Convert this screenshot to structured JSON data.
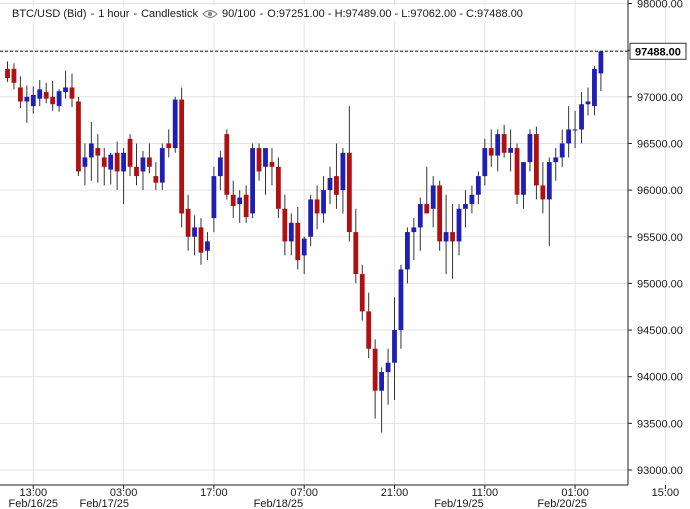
{
  "header": {
    "symbol": "BTC/USD (Bid)",
    "interval": "1 hour",
    "chart_kind": "Candlestick",
    "progress": "90/100",
    "ohlc": "O:97251.00 - H:97489.00 - L:97062.00 - C:97488.00"
  },
  "colors": {
    "bull": "#1f1fb4",
    "bear": "#b01010",
    "grid": "#e3e3e3",
    "axis": "#222222",
    "text": "#1a1a1a",
    "last_price_line": "#222222"
  },
  "chart_data": {
    "type": "candlestick",
    "ylim": [
      92900,
      98000
    ],
    "y_ticks": [
      93000,
      93500,
      94000,
      94500,
      95000,
      95500,
      96000,
      96500,
      97000,
      97500,
      98000
    ],
    "y_tick_labels": [
      "93000.00",
      "93500.00",
      "94000.00",
      "94500.00",
      "95000.00",
      "95500.00",
      "96000.00",
      "96500.00",
      "97000.00",
      "97500.00",
      "98000.00"
    ],
    "time_ticks": [
      {
        "index": 4,
        "label": "13:00"
      },
      {
        "index": 18,
        "label": "03:00"
      },
      {
        "index": 32,
        "label": "17:00"
      },
      {
        "index": 46,
        "label": "07:00"
      },
      {
        "index": 60,
        "label": "21:00"
      },
      {
        "index": 74,
        "label": "11:00"
      },
      {
        "index": 88,
        "label": "01:00"
      },
      {
        "index": 102,
        "label": "15:00"
      }
    ],
    "date_labels": [
      {
        "index": 4,
        "label": "Feb/16/25"
      },
      {
        "index": 15,
        "label": "Feb/17/25"
      },
      {
        "index": 42,
        "label": "Feb/18/25"
      },
      {
        "index": 70,
        "label": "Feb/19/25"
      },
      {
        "index": 86,
        "label": "Feb/20/25"
      }
    ],
    "last_price": 97488,
    "last_price_label": "97488.00",
    "candles": [
      {
        "o": 97300,
        "h": 97380,
        "l": 97160,
        "c": 97200
      },
      {
        "o": 97300,
        "h": 97360,
        "l": 97080,
        "c": 97150
      },
      {
        "o": 97100,
        "h": 97220,
        "l": 96880,
        "c": 96950
      },
      {
        "o": 96950,
        "h": 97120,
        "l": 96720,
        "c": 97000
      },
      {
        "o": 96900,
        "h": 97110,
        "l": 96820,
        "c": 97020
      },
      {
        "o": 96980,
        "h": 97180,
        "l": 96900,
        "c": 97080
      },
      {
        "o": 97050,
        "h": 97150,
        "l": 96930,
        "c": 96980
      },
      {
        "o": 97000,
        "h": 97170,
        "l": 96850,
        "c": 96920
      },
      {
        "o": 96900,
        "h": 97080,
        "l": 96840,
        "c": 97060
      },
      {
        "o": 97050,
        "h": 97280,
        "l": 96980,
        "c": 97100
      },
      {
        "o": 97100,
        "h": 97250,
        "l": 96890,
        "c": 96980
      },
      {
        "o": 96950,
        "h": 97000,
        "l": 96150,
        "c": 96200
      },
      {
        "o": 96250,
        "h": 96500,
        "l": 96050,
        "c": 96350
      },
      {
        "o": 96350,
        "h": 96730,
        "l": 96100,
        "c": 96500
      },
      {
        "o": 96450,
        "h": 96600,
        "l": 96080,
        "c": 96370
      },
      {
        "o": 96350,
        "h": 96450,
        "l": 96050,
        "c": 96250
      },
      {
        "o": 96220,
        "h": 96400,
        "l": 96060,
        "c": 96380
      },
      {
        "o": 96400,
        "h": 96520,
        "l": 96000,
        "c": 96200
      },
      {
        "o": 96200,
        "h": 96450,
        "l": 95850,
        "c": 96400
      },
      {
        "o": 96550,
        "h": 96600,
        "l": 96150,
        "c": 96250
      },
      {
        "o": 96250,
        "h": 96500,
        "l": 96050,
        "c": 96150
      },
      {
        "o": 96200,
        "h": 96420,
        "l": 96000,
        "c": 96350
      },
      {
        "o": 96350,
        "h": 96500,
        "l": 96180,
        "c": 96250
      },
      {
        "o": 96150,
        "h": 96300,
        "l": 96000,
        "c": 96080
      },
      {
        "o": 96080,
        "h": 96500,
        "l": 96000,
        "c": 96450
      },
      {
        "o": 96500,
        "h": 96650,
        "l": 96350,
        "c": 96450
      },
      {
        "o": 96450,
        "h": 97000,
        "l": 96400,
        "c": 96970
      },
      {
        "o": 96970,
        "h": 97100,
        "l": 95600,
        "c": 95750
      },
      {
        "o": 95800,
        "h": 95950,
        "l": 95350,
        "c": 95500
      },
      {
        "o": 95500,
        "h": 95730,
        "l": 95300,
        "c": 95600
      },
      {
        "o": 95600,
        "h": 95700,
        "l": 95200,
        "c": 95330
      },
      {
        "o": 95350,
        "h": 95550,
        "l": 95250,
        "c": 95450
      },
      {
        "o": 95700,
        "h": 96250,
        "l": 95550,
        "c": 96150
      },
      {
        "o": 96150,
        "h": 96420,
        "l": 96000,
        "c": 96350
      },
      {
        "o": 96600,
        "h": 96650,
        "l": 95900,
        "c": 95950
      },
      {
        "o": 95950,
        "h": 96100,
        "l": 95700,
        "c": 95830
      },
      {
        "o": 95850,
        "h": 96000,
        "l": 95650,
        "c": 95920
      },
      {
        "o": 95950,
        "h": 96050,
        "l": 95650,
        "c": 95710
      },
      {
        "o": 95750,
        "h": 96500,
        "l": 95700,
        "c": 96450
      },
      {
        "o": 96450,
        "h": 96500,
        "l": 96100,
        "c": 96200
      },
      {
        "o": 96250,
        "h": 96400,
        "l": 95950,
        "c": 96450
      },
      {
        "o": 96300,
        "h": 96450,
        "l": 96050,
        "c": 96250
      },
      {
        "o": 96250,
        "h": 96350,
        "l": 95700,
        "c": 95800
      },
      {
        "o": 95800,
        "h": 95950,
        "l": 95300,
        "c": 95450
      },
      {
        "o": 95450,
        "h": 95750,
        "l": 95300,
        "c": 95650
      },
      {
        "o": 95650,
        "h": 95820,
        "l": 95150,
        "c": 95250
      },
      {
        "o": 95300,
        "h": 95500,
        "l": 95100,
        "c": 95480
      },
      {
        "o": 95500,
        "h": 95950,
        "l": 95400,
        "c": 95900
      },
      {
        "o": 95900,
        "h": 96050,
        "l": 95580,
        "c": 95750
      },
      {
        "o": 95750,
        "h": 96150,
        "l": 95650,
        "c": 96000
      },
      {
        "o": 96000,
        "h": 96250,
        "l": 95850,
        "c": 96130
      },
      {
        "o": 96150,
        "h": 96500,
        "l": 95800,
        "c": 95950
      },
      {
        "o": 96000,
        "h": 96450,
        "l": 95750,
        "c": 96400
      },
      {
        "o": 96400,
        "h": 96900,
        "l": 95450,
        "c": 95550
      },
      {
        "o": 95550,
        "h": 95800,
        "l": 95000,
        "c": 95100
      },
      {
        "o": 95100,
        "h": 95200,
        "l": 94600,
        "c": 94700
      },
      {
        "o": 94700,
        "h": 94900,
        "l": 94200,
        "c": 94300
      },
      {
        "o": 94300,
        "h": 94400,
        "l": 93550,
        "c": 93850
      },
      {
        "o": 93850,
        "h": 94100,
        "l": 93400,
        "c": 94050
      },
      {
        "o": 94050,
        "h": 94300,
        "l": 93700,
        "c": 94150
      },
      {
        "o": 94150,
        "h": 94850,
        "l": 93750,
        "c": 94500
      },
      {
        "o": 94500,
        "h": 95200,
        "l": 94300,
        "c": 95150
      },
      {
        "o": 95150,
        "h": 95600,
        "l": 95000,
        "c": 95550
      },
      {
        "o": 95550,
        "h": 95700,
        "l": 95250,
        "c": 95600
      },
      {
        "o": 95600,
        "h": 95920,
        "l": 95350,
        "c": 95850
      },
      {
        "o": 95850,
        "h": 96250,
        "l": 95750,
        "c": 95750
      },
      {
        "o": 95800,
        "h": 96150,
        "l": 95600,
        "c": 96050
      },
      {
        "o": 96050,
        "h": 96100,
        "l": 95350,
        "c": 95450
      },
      {
        "o": 95450,
        "h": 95950,
        "l": 95100,
        "c": 95550
      },
      {
        "o": 95550,
        "h": 95850,
        "l": 95050,
        "c": 95450
      },
      {
        "o": 95450,
        "h": 95850,
        "l": 95300,
        "c": 95800
      },
      {
        "o": 95800,
        "h": 96000,
        "l": 95600,
        "c": 95850
      },
      {
        "o": 95850,
        "h": 96050,
        "l": 95750,
        "c": 95950
      },
      {
        "o": 95950,
        "h": 96200,
        "l": 95850,
        "c": 96150
      },
      {
        "o": 96150,
        "h": 96550,
        "l": 96050,
        "c": 96450
      },
      {
        "o": 96450,
        "h": 96650,
        "l": 96250,
        "c": 96370
      },
      {
        "o": 96370,
        "h": 96650,
        "l": 96200,
        "c": 96600
      },
      {
        "o": 96600,
        "h": 96700,
        "l": 96350,
        "c": 96400
      },
      {
        "o": 96400,
        "h": 96650,
        "l": 96200,
        "c": 96450
      },
      {
        "o": 96450,
        "h": 96500,
        "l": 95850,
        "c": 95950
      },
      {
        "o": 95950,
        "h": 96300,
        "l": 95800,
        "c": 96300
      },
      {
        "o": 96300,
        "h": 96650,
        "l": 96200,
        "c": 96600
      },
      {
        "o": 96600,
        "h": 96680,
        "l": 95900,
        "c": 96050
      },
      {
        "o": 96050,
        "h": 96300,
        "l": 95750,
        "c": 95900
      },
      {
        "o": 95900,
        "h": 96350,
        "l": 95400,
        "c": 96300
      },
      {
        "o": 96300,
        "h": 96450,
        "l": 96100,
        "c": 96350
      },
      {
        "o": 96350,
        "h": 96650,
        "l": 96250,
        "c": 96500
      },
      {
        "o": 96500,
        "h": 96900,
        "l": 96350,
        "c": 96650
      },
      {
        "o": 96650,
        "h": 96850,
        "l": 96450,
        "c": 96650
      },
      {
        "o": 96650,
        "h": 97050,
        "l": 96500,
        "c": 96920
      },
      {
        "o": 96920,
        "h": 97100,
        "l": 96800,
        "c": 96950
      },
      {
        "o": 96900,
        "h": 97330,
        "l": 96800,
        "c": 97300
      },
      {
        "o": 97251,
        "h": 97489,
        "l": 97062,
        "c": 97488
      }
    ]
  }
}
